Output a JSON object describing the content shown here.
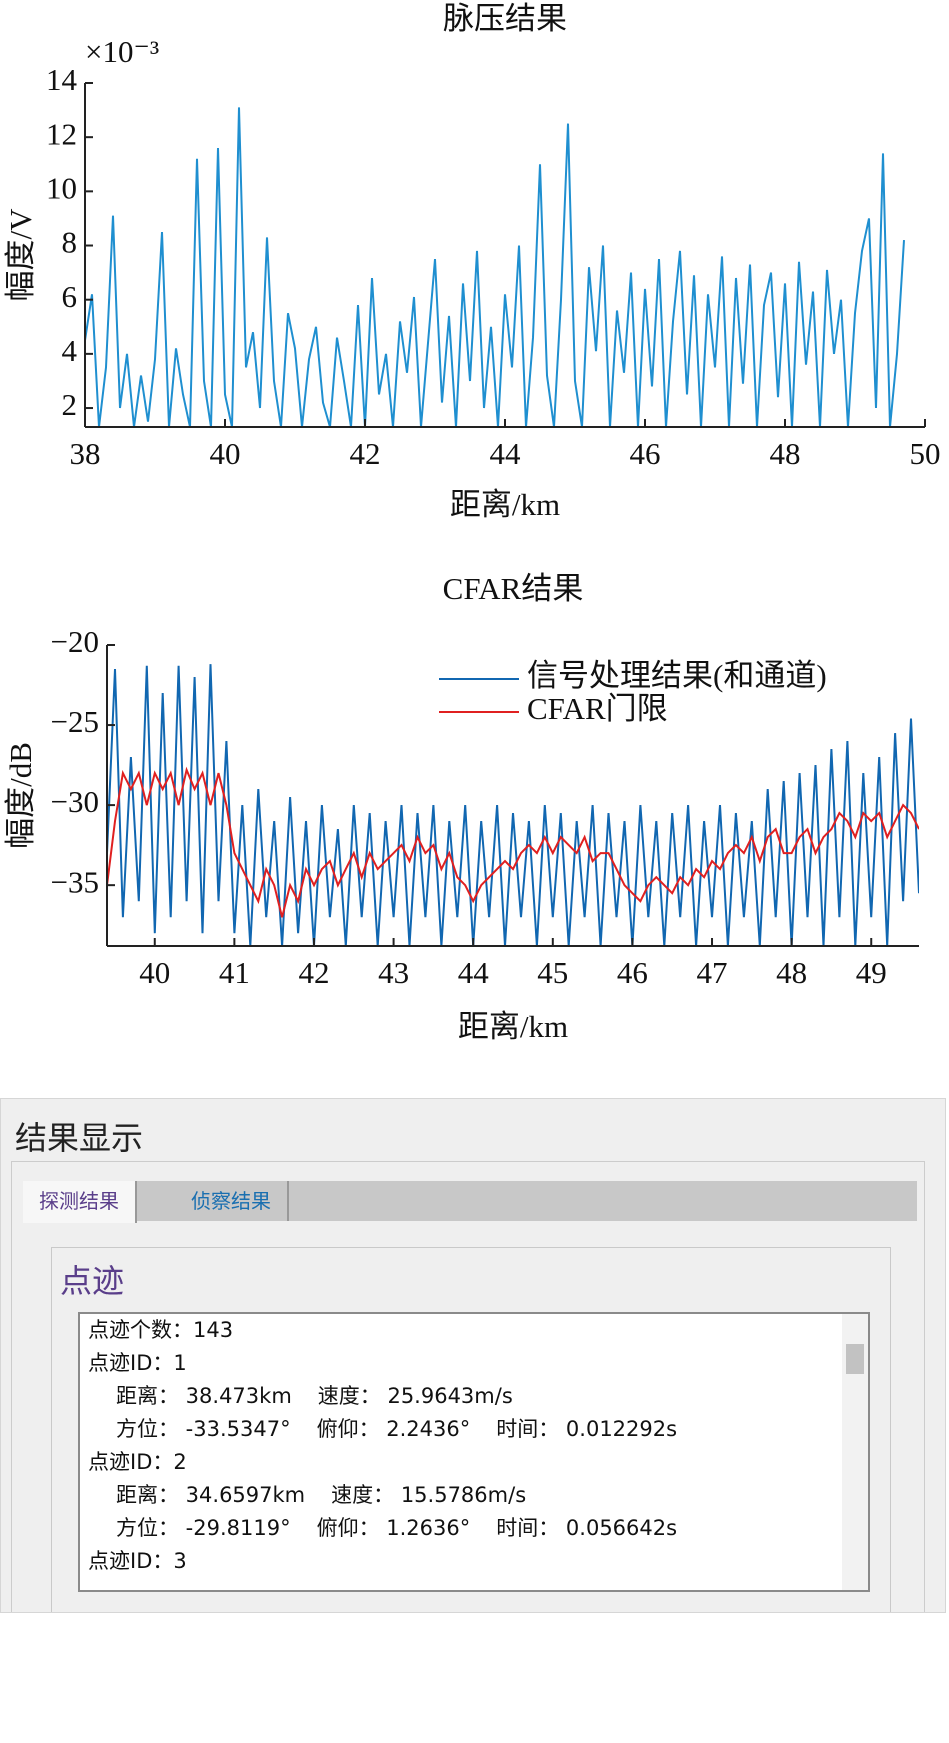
{
  "chart_data": [
    {
      "type": "line",
      "title": "脉压结果",
      "xlabel": "距离/km",
      "ylabel": "幅度/V",
      "y_exponent_label": "×10⁻³",
      "xlim": [
        38,
        50
      ],
      "ylim": [
        1.3,
        14
      ],
      "xticks": [
        38,
        40,
        42,
        44,
        46,
        48,
        50
      ],
      "yticks": [
        2,
        4,
        6,
        8,
        10,
        12,
        14
      ],
      "grid": false,
      "x": [
        38.0,
        38.1,
        38.2,
        38.3,
        38.4,
        38.5,
        38.6,
        38.7,
        38.8,
        38.9,
        39.0,
        39.1,
        39.2,
        39.3,
        39.4,
        39.5,
        39.6,
        39.7,
        39.8,
        39.9,
        40.0,
        40.1,
        40.2,
        40.3,
        40.4,
        40.5,
        40.6,
        40.7,
        40.8,
        40.9,
        41.0,
        41.1,
        41.2,
        41.3,
        41.4,
        41.5,
        41.6,
        41.7,
        41.8,
        41.9,
        42.0,
        42.1,
        42.2,
        42.3,
        42.4,
        42.5,
        42.6,
        42.7,
        42.8,
        42.9,
        43.0,
        43.1,
        43.2,
        43.3,
        43.4,
        43.5,
        43.6,
        43.7,
        43.8,
        43.9,
        44.0,
        44.1,
        44.2,
        44.3,
        44.4,
        44.5,
        44.6,
        44.7,
        44.8,
        44.9,
        45.0,
        45.1,
        45.2,
        45.3,
        45.4,
        45.5,
        45.6,
        45.7,
        45.8,
        45.9,
        46.0,
        46.1,
        46.2,
        46.3,
        46.4,
        46.5,
        46.6,
        46.7,
        46.8,
        46.9,
        47.0,
        47.1,
        47.2,
        47.3,
        47.4,
        47.5,
        47.6,
        47.7,
        47.8,
        47.9,
        48.0,
        48.1,
        48.2,
        48.3,
        48.4,
        48.5,
        48.6,
        48.7,
        48.8,
        48.9,
        49.0,
        49.1,
        49.2,
        49.3,
        49.4,
        49.5,
        49.6,
        49.7
      ],
      "series": [
        {
          "color": "#1f8fd0",
          "values": [
            4.5,
            6.2,
            1.3,
            3.5,
            9.1,
            2.0,
            4.0,
            1.3,
            3.2,
            1.5,
            3.8,
            8.5,
            1.3,
            4.2,
            2.5,
            1.3,
            11.2,
            3.0,
            1.3,
            11.6,
            2.5,
            1.3,
            13.1,
            3.5,
            4.8,
            2.0,
            8.3,
            3.0,
            1.3,
            5.5,
            4.2,
            1.3,
            3.8,
            5.0,
            2.2,
            1.3,
            4.6,
            3.0,
            1.3,
            5.8,
            1.3,
            6.8,
            2.5,
            4.0,
            1.3,
            5.2,
            3.3,
            6.1,
            1.3,
            4.4,
            7.5,
            2.2,
            5.4,
            1.3,
            6.6,
            3.0,
            7.8,
            2.0,
            5.0,
            1.3,
            6.2,
            3.5,
            8.0,
            1.3,
            4.6,
            11.0,
            3.2,
            1.3,
            6.0,
            12.5,
            3.0,
            1.3,
            7.2,
            4.1,
            8.0,
            1.3,
            5.6,
            3.3,
            7.0,
            1.3,
            6.4,
            2.8,
            7.5,
            1.3,
            5.2,
            7.8,
            2.5,
            6.9,
            1.3,
            6.2,
            3.5,
            7.6,
            1.3,
            6.8,
            2.9,
            7.3,
            1.3,
            5.8,
            7.0,
            2.4,
            6.6,
            1.3,
            7.4,
            3.6,
            6.3,
            1.3,
            7.1,
            4.0,
            6.0,
            1.3,
            5.5,
            7.8,
            9.0,
            2.0,
            11.4,
            1.3,
            4.0,
            8.2
          ]
        }
      ]
    },
    {
      "type": "line",
      "title": "CFAR结果",
      "xlabel": "距离/km",
      "ylabel": "幅度/dB",
      "legend": "upper right",
      "xlim": [
        39.4,
        49.6
      ],
      "ylim": [
        -38.8,
        -20
      ],
      "xticks": [
        40,
        41,
        42,
        43,
        44,
        45,
        46,
        47,
        48,
        49
      ],
      "yticks": [
        {
          "value": -20,
          "label": "−20"
        },
        {
          "value": -25,
          "label": "−25"
        },
        {
          "value": -30,
          "label": "−30"
        },
        {
          "value": -35,
          "label": "−35"
        }
      ],
      "grid": false,
      "x": [
        39.4,
        39.5,
        39.6,
        39.7,
        39.8,
        39.9,
        40.0,
        40.1,
        40.2,
        40.3,
        40.4,
        40.5,
        40.6,
        40.7,
        40.8,
        40.9,
        41.0,
        41.1,
        41.2,
        41.3,
        41.4,
        41.5,
        41.6,
        41.7,
        41.8,
        41.9,
        42.0,
        42.1,
        42.2,
        42.3,
        42.4,
        42.5,
        42.6,
        42.7,
        42.8,
        42.9,
        43.0,
        43.1,
        43.2,
        43.3,
        43.4,
        43.5,
        43.6,
        43.7,
        43.8,
        43.9,
        44.0,
        44.1,
        44.2,
        44.3,
        44.4,
        44.5,
        44.6,
        44.7,
        44.8,
        44.9,
        45.0,
        45.1,
        45.2,
        45.3,
        45.4,
        45.5,
        45.6,
        45.7,
        45.8,
        45.9,
        46.0,
        46.1,
        46.2,
        46.3,
        46.4,
        46.5,
        46.6,
        46.7,
        46.8,
        46.9,
        47.0,
        47.1,
        47.2,
        47.3,
        47.4,
        47.5,
        47.6,
        47.7,
        47.8,
        47.9,
        48.0,
        48.1,
        48.2,
        48.3,
        48.4,
        48.5,
        48.6,
        48.7,
        48.8,
        48.9,
        49.0,
        49.1,
        49.2,
        49.3,
        49.4,
        49.5,
        49.6
      ],
      "series": [
        {
          "name": "信号处理结果(和通道)",
          "color": "#1167b1",
          "values": [
            -33,
            -21.5,
            -37,
            -27,
            -36,
            -21.3,
            -38,
            -23,
            -37,
            -21.3,
            -36,
            -22,
            -38,
            -21.2,
            -36,
            -26,
            -38,
            -30,
            -38.8,
            -29,
            -37,
            -31,
            -38.8,
            -29.5,
            -38,
            -31,
            -38.8,
            -30,
            -37,
            -31.5,
            -38.8,
            -30,
            -37,
            -30.5,
            -38.8,
            -31,
            -37,
            -30,
            -38.8,
            -30.5,
            -37,
            -30,
            -38.8,
            -31,
            -37,
            -30,
            -38.8,
            -31,
            -37,
            -30,
            -38.8,
            -30.5,
            -37,
            -31,
            -38.8,
            -30,
            -37,
            -30.5,
            -38.8,
            -31,
            -37,
            -30,
            -38.8,
            -30.5,
            -37,
            -31,
            -38.8,
            -30,
            -37,
            -31,
            -38.8,
            -30.5,
            -37,
            -30,
            -38.8,
            -31,
            -37,
            -30,
            -38.8,
            -30.5,
            -37,
            -31,
            -38.8,
            -29,
            -37,
            -28.5,
            -38.8,
            -28,
            -37,
            -27.5,
            -38.8,
            -26.5,
            -37,
            -26,
            -38.8,
            -28,
            -37,
            -27,
            -38.8,
            -25.5,
            -36,
            -24.6,
            -35.5
          ]
        },
        {
          "name": "CFAR门限",
          "color": "#e02020",
          "values": [
            -35,
            -31,
            -28,
            -29,
            -28,
            -30,
            -28,
            -29,
            -28,
            -30,
            -27.8,
            -29,
            -28,
            -30,
            -28,
            -30,
            -33,
            -34,
            -35,
            -36,
            -34,
            -35,
            -37,
            -35,
            -36,
            -34,
            -35,
            -34,
            -33.5,
            -35,
            -34,
            -33,
            -34.5,
            -33,
            -34,
            -33.5,
            -33,
            -32.5,
            -33.5,
            -32,
            -33,
            -32.5,
            -34,
            -33,
            -34.5,
            -35,
            -36,
            -35,
            -34.5,
            -34,
            -33.5,
            -34,
            -33,
            -32.5,
            -33,
            -32,
            -33,
            -32,
            -32.5,
            -33,
            -32,
            -33.5,
            -33,
            -33,
            -34,
            -35,
            -35.5,
            -36,
            -35,
            -34.5,
            -35,
            -35.5,
            -34.5,
            -35,
            -34,
            -34.5,
            -33.5,
            -34,
            -33,
            -32.5,
            -33,
            -32,
            -33.5,
            -32,
            -31.5,
            -33,
            -33,
            -32,
            -31.5,
            -33,
            -32,
            -31.5,
            -30.5,
            -31,
            -32,
            -30.5,
            -31,
            -30.5,
            -32,
            -31,
            -30,
            -30.5,
            -31.5
          ]
        }
      ]
    }
  ],
  "panel": {
    "title": "结果显示",
    "tabs": [
      "探测结果",
      "侦察结果"
    ],
    "group": "点迹",
    "count": "点迹个数：143",
    "tracks": [
      {
        "id": "点迹ID：1",
        "range": "距离： 38.473km",
        "speed": "速度： 25.9643m/s",
        "azimuth": "方位： -33.5347°",
        "elevation": "俯仰： 2.2436°",
        "time": "时间： 0.012292s"
      },
      {
        "id": "点迹ID：2",
        "range": "距离： 34.6597km",
        "speed": "速度： 15.5786m/s",
        "azimuth": "方位： -29.8119°",
        "elevation": "俯仰： 1.2636°",
        "time": "时间： 0.056642s"
      },
      {
        "id": "点迹ID：3"
      }
    ]
  }
}
